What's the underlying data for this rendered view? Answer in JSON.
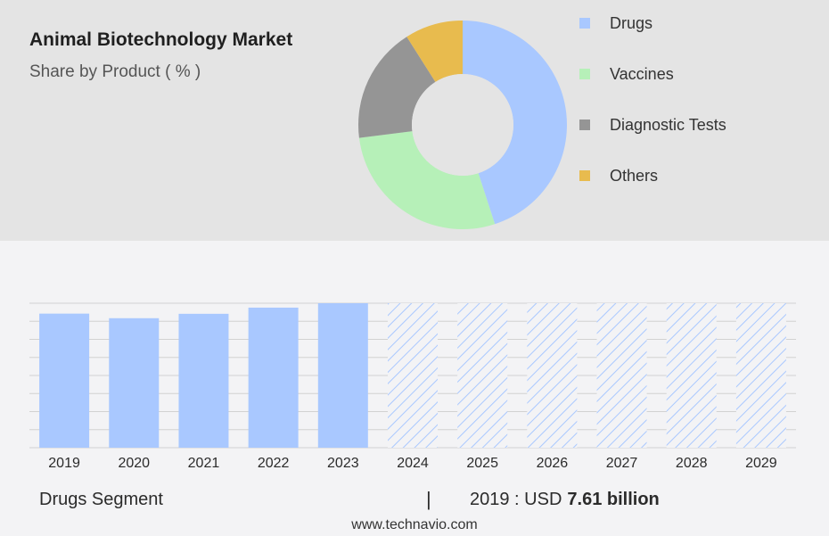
{
  "header": {
    "title": "Animal Biotechnology Market",
    "subtitle": "Share by Product ( % )"
  },
  "colors": {
    "drugs": "#a9c8ff",
    "vaccines": "#b6f0b8",
    "diagnostic_tests": "#959595",
    "others": "#e8bb4e",
    "forecast_hatch": "#a9c8ff"
  },
  "chart_data": [
    {
      "type": "pie",
      "donut": true,
      "categories": [
        "Drugs",
        "Vaccines",
        "Diagnostic Tests",
        "Others"
      ],
      "values": [
        45,
        28,
        18,
        9
      ],
      "legend": "right"
    },
    {
      "type": "bar",
      "categories": [
        "2019",
        "2020",
        "2021",
        "2022",
        "2023",
        "2024",
        "2025",
        "2026",
        "2027",
        "2028",
        "2029"
      ],
      "values": [
        7.61,
        7.35,
        7.6,
        7.95,
        8.2,
        null,
        null,
        null,
        null,
        null,
        null
      ],
      "forecast_from": "2024",
      "ylim": [
        0,
        8.2
      ],
      "grid": true
    }
  ],
  "segment": {
    "name": "Drugs Segment",
    "divider": "|",
    "year_label": "2019 : USD",
    "value_label": "7.61 billion"
  },
  "footer": {
    "site": "www.technavio.com"
  }
}
